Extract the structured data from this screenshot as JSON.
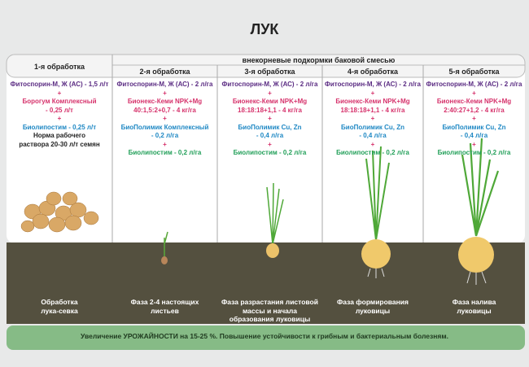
{
  "title": "ЛУК",
  "subheader": "внекорневые подкормки баковой смесью",
  "separator": "+",
  "columns": [
    {
      "header": "1-я обработка",
      "groups": [
        [
          "Фитоспорин-М, Ж (АС) - 1,5 л/т"
        ],
        [
          "Борогум Комплексный",
          "- 0,25 л/т"
        ],
        [
          "Биолипостим - 0,25 л/т"
        ]
      ],
      "note": [
        "Норма рабочего",
        "раствора 20-30 л/т семян"
      ],
      "stage": [
        "Обработка",
        "лука-севка"
      ]
    },
    {
      "header": "2-я обработка",
      "groups": [
        [
          "Фитоспорин-М, Ж (АС) - 2 л/га"
        ],
        [
          "Бионекс-Кеми NPK+Mg",
          "40:1,5:2+0,7 - 4 кг/га"
        ],
        [
          "БиоПолимик Комплексный",
          "- 0,2 л/га"
        ],
        [
          "Биолипостим - 0,2 л/га"
        ]
      ],
      "stage": [
        "Фаза 2-4 настоящих",
        "листьев"
      ]
    },
    {
      "header": "3-я обработка",
      "groups": [
        [
          "Фитоспорин-М, Ж (АС) - 2 л/га"
        ],
        [
          "Бионекс-Кеми NPK+Mg",
          "18:18:18+1,1 - 4 кг/га"
        ],
        [
          "БиоПолимик Cu, Zn",
          "- 0,4 л/га"
        ],
        [
          "Биолипостим - 0,2 л/га"
        ]
      ],
      "stage": [
        "Фаза разрастания листовой",
        "массы и начала",
        "образования луковицы"
      ]
    },
    {
      "header": "4-я обработка",
      "groups": [
        [
          "Фитоспорин-М, Ж (АС) - 2 л/га"
        ],
        [
          "Бионекс-Кеми NPK+Mg",
          "18:18:18+1,1 - 4 кг/га"
        ],
        [
          "БиоПолимик Cu, Zn",
          "- 0,4 л/га"
        ],
        [
          "Биолипостим - 0,2 л/га"
        ]
      ],
      "stage": [
        "Фаза формирования",
        "луковицы"
      ]
    },
    {
      "header": "5-я обработка",
      "groups": [
        [
          "Фитоспорин-М, Ж (АС) - 2 л/га"
        ],
        [
          "Бионекс-Кеми NPK+Mg",
          "2:40:27+1,2 - 4 кг/га"
        ],
        [
          "БиоПолимик Cu, Zn",
          "- 0,4 л/га"
        ],
        [
          "Биолипостим - 0,2 л/га"
        ]
      ],
      "stage": [
        "Фаза налива",
        "луковицы"
      ]
    }
  ],
  "footer": "Увеличение УРОЖАЙНОСТИ на 15-25 %. Повышение устойчивости к грибным и бактериальным болезням."
}
